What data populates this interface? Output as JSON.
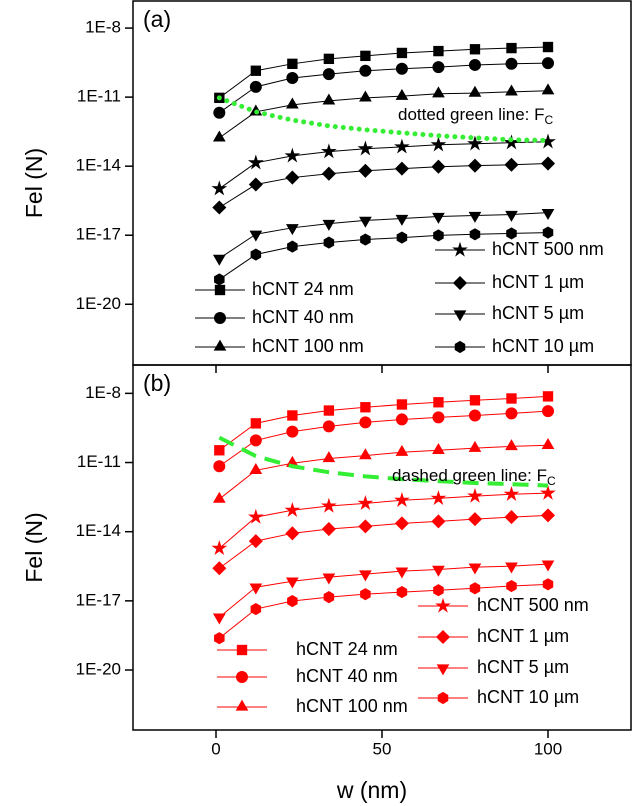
{
  "chart_data": [
    {
      "type": "line",
      "panel_label": "(a)",
      "y_label": "Fel (N)",
      "log_y": true,
      "xlim": [
        -25,
        125
      ],
      "xticks": [
        0,
        50,
        100
      ],
      "ylim": [
        2.3e-23,
        1.5e-07
      ],
      "yticks": [
        {
          "value": 1e-20,
          "label": "1E-20"
        },
        {
          "value": 1e-17,
          "label": "1E-17"
        },
        {
          "value": 1e-14,
          "label": "1E-14"
        },
        {
          "value": 1e-11,
          "label": "1E-11"
        },
        {
          "value": 1e-08,
          "label": "1E-8"
        }
      ],
      "x": [
        1,
        12,
        23,
        34,
        45,
        56,
        67,
        78,
        89,
        100
      ],
      "series": [
        {
          "name": "hCNT 24 nm",
          "color": "#000000",
          "marker": "square",
          "values": [
            9.3e-12,
            1.4e-10,
            2.8e-10,
            4.6e-10,
            6.2e-10,
            8.3e-10,
            1e-09,
            1.2e-09,
            1.35e-09,
            1.5e-09
          ]
        },
        {
          "name": "hCNT 40 nm",
          "color": "#000000",
          "marker": "circle",
          "values": [
            2.1e-12,
            2.8e-11,
            6.8e-11,
            1e-10,
            1.4e-10,
            1.7e-10,
            2e-10,
            2.5e-10,
            2.8e-10,
            3e-10
          ]
        },
        {
          "name": "hCNT 100 nm",
          "color": "#000000",
          "marker": "triangle",
          "values": [
            1.7e-13,
            2.3e-12,
            4.6e-12,
            6.9e-12,
            9.3e-12,
            1.1e-11,
            1.4e-11,
            1.5e-11,
            1.7e-11,
            1.9e-11
          ]
        },
        {
          "name": "hCNT 500 nm",
          "color": "#000000",
          "marker": "star",
          "values": [
            1.05e-15,
            1.4e-14,
            2.8e-14,
            4.3e-14,
            5.7e-14,
            6.9e-14,
            8.5e-14,
            9.4e-14,
            1.05e-13,
            1.15e-13
          ]
        },
        {
          "name": "hCNT 1 µm",
          "color": "#000000",
          "marker": "diamond",
          "values": [
            1.6e-16,
            1.6e-15,
            3.2e-15,
            4.7e-15,
            6.3e-15,
            7.8e-15,
            9.5e-15,
            1.05e-14,
            1.15e-14,
            1.3e-14
          ]
        },
        {
          "name": "hCNT 5 µm",
          "color": "#000000",
          "marker": "triangle-down",
          "values": [
            9.8e-19,
            1.1e-17,
            2.1e-17,
            3.2e-17,
            4.4e-17,
            5.3e-17,
            6.5e-17,
            7.2e-17,
            7.9e-17,
            9.6e-17
          ]
        },
        {
          "name": "hCNT 10 µm",
          "color": "#000000",
          "marker": "hexagon",
          "values": [
            1.2e-19,
            1.45e-18,
            3.2e-18,
            4.8e-18,
            6.5e-18,
            7.9e-18,
            9.8e-18,
            1.1e-17,
            1.2e-17,
            1.3e-17
          ]
        }
      ],
      "reference_line": {
        "style": "dotted",
        "color": "#33ee33",
        "values": [
          9.3e-12,
          2.3e-12,
          1e-12,
          5.6e-13,
          3.8e-13,
          2.8e-13,
          2.1e-13,
          1.7e-13,
          1.4e-13,
          1.3e-13
        ]
      },
      "annotation": {
        "text": "dotted green line: F",
        "sub": "C"
      }
    },
    {
      "type": "line",
      "panel_label": "(b)",
      "y_label": "Fel (N)",
      "x_label": "w (nm)",
      "log_y": true,
      "xlim": [
        -25,
        125
      ],
      "xticks": [
        0,
        50,
        100
      ],
      "ylim": [
        2.5e-23,
        1.7e-07
      ],
      "yticks": [
        {
          "value": 1e-20,
          "label": "1E-20"
        },
        {
          "value": 1e-17,
          "label": "1E-17"
        },
        {
          "value": 1e-14,
          "label": "1E-14"
        },
        {
          "value": 1e-11,
          "label": "1E-11"
        },
        {
          "value": 1e-08,
          "label": "1E-8"
        }
      ],
      "x": [
        1,
        12,
        23,
        34,
        45,
        56,
        67,
        78,
        89,
        100
      ],
      "series": [
        {
          "name": "hCNT 24 nm",
          "color": "#ff0000",
          "marker": "square",
          "values": [
            3.4e-11,
            5e-10,
            1.1e-09,
            1.8e-09,
            2.5e-09,
            3.3e-09,
            4.1e-09,
            5e-09,
            6e-09,
            7.4e-09
          ]
        },
        {
          "name": "hCNT 40 nm",
          "color": "#ff0000",
          "marker": "circle",
          "values": [
            6.9e-12,
            9.1e-11,
            2.2e-10,
            3.7e-10,
            5.5e-10,
            7.4e-10,
            9.1e-10,
            1.1e-09,
            1.35e-09,
            1.7e-09
          ]
        },
        {
          "name": "hCNT 100 nm",
          "color": "#ff0000",
          "marker": "triangle",
          "values": [
            2.6e-13,
            4.6e-12,
            9.3e-12,
            1.5e-11,
            2e-11,
            2.8e-11,
            3.4e-11,
            4.2e-11,
            5e-11,
            5.6e-11
          ]
        },
        {
          "name": "hCNT 500 nm",
          "color": "#ff0000",
          "marker": "star",
          "values": [
            1.9e-15,
            4.3e-14,
            8.5e-14,
            1.3e-13,
            1.7e-13,
            2.3e-13,
            2.8e-13,
            3.5e-13,
            4.2e-13,
            4.7e-13
          ]
        },
        {
          "name": "hCNT 1 µm",
          "color": "#ff0000",
          "marker": "diamond",
          "values": [
            2.6e-16,
            3.9e-15,
            8.5e-15,
            1.3e-14,
            1.7e-14,
            2.3e-14,
            2.8e-14,
            3.5e-14,
            4.3e-14,
            5.1e-14
          ]
        },
        {
          "name": "hCNT 5 µm",
          "color": "#ff0000",
          "marker": "triangle-down",
          "values": [
            1.95e-18,
            3.9e-17,
            7.1e-17,
            1.07e-16,
            1.45e-16,
            1.95e-16,
            2.3e-16,
            2.9e-16,
            3.2e-16,
            3.9e-16
          ]
        },
        {
          "name": "hCNT 10 µm",
          "color": "#ff0000",
          "marker": "hexagon",
          "values": [
            2.4e-19,
            4.4e-18,
            9.8e-18,
            1.45e-17,
            1.95e-17,
            2.4e-17,
            2.9e-17,
            3.5e-17,
            4.4e-17,
            5.2e-17
          ]
        }
      ],
      "reference_line": {
        "style": "dashed",
        "color": "#33ee33",
        "values": [
          1.2e-10,
          1.9e-11,
          6.9e-12,
          3.8e-12,
          2.5e-12,
          1.9e-12,
          1.55e-12,
          1.3e-12,
          1.15e-12,
          1e-12
        ]
      },
      "annotation": {
        "text": "dashed green line: F",
        "sub": "C"
      }
    }
  ]
}
